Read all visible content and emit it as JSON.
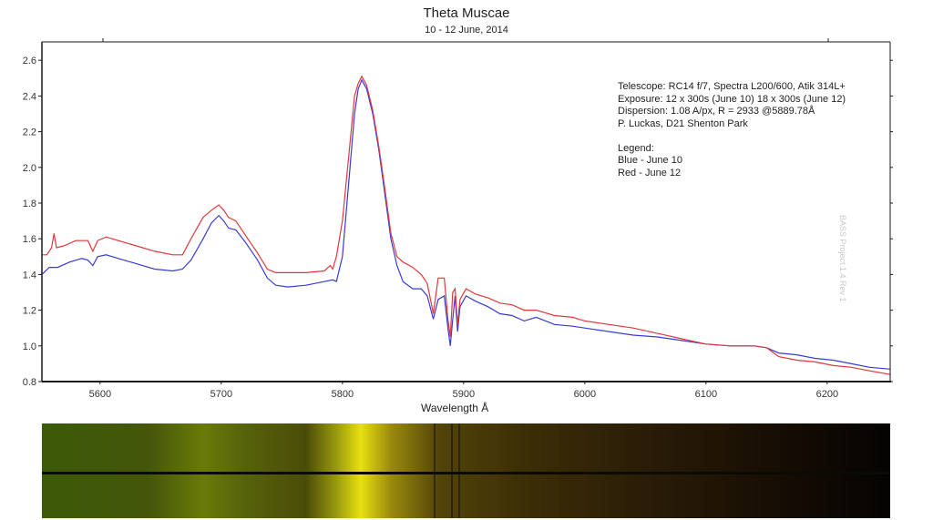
{
  "header": {
    "title": "Theta Muscae",
    "subtitle": "10 - 12 June, 2014"
  },
  "info": {
    "lines": [
      "Telescope: RC14 f/7, Spectra L200/600, Atik 314L+",
      "Exposure: 12 x 300s (June 10) 18 x 300s (June 12)",
      "Dispersion: 1.08 A/px, R = 2933 @5889.78Å",
      "P. Luckas, D21 Shenton Park",
      "",
      "Legend:",
      "Blue - June 10",
      "Red - June 12"
    ]
  },
  "watermark": "BASS Project 1.4 Rev 1",
  "colors": {
    "blue": "#3a3ad6",
    "red": "#e0383c",
    "axis": "#1a1a1a"
  },
  "chart_data": {
    "type": "line",
    "title": "Theta Muscae",
    "subtitle": "10 - 12 June, 2014",
    "xlabel": "Wavelength Å",
    "ylabel": "",
    "xlim": [
      5552,
      6252
    ],
    "ylim": [
      0.8,
      2.7
    ],
    "xticks": [
      5600,
      5700,
      5800,
      5900,
      6000,
      6100,
      6200
    ],
    "yticks": [
      0.8,
      1.0,
      1.2,
      1.4,
      1.6,
      1.8,
      2.0,
      2.2,
      2.4,
      2.6
    ],
    "grid": false,
    "legend": "text block upper right: Blue - June 10, Red - June 12",
    "series": [
      {
        "name": "June 10",
        "color": "blue",
        "x": [
          5552,
          5558,
          5565,
          5575,
          5585,
          5590,
          5594,
          5598,
          5605,
          5615,
          5630,
          5645,
          5660,
          5668,
          5675,
          5685,
          5692,
          5698,
          5702,
          5706,
          5712,
          5720,
          5730,
          5738,
          5745,
          5755,
          5770,
          5785,
          5792,
          5795,
          5800,
          5805,
          5810,
          5813,
          5816,
          5820,
          5825,
          5830,
          5835,
          5840,
          5845,
          5850,
          5858,
          5865,
          5870,
          5875,
          5879,
          5884,
          5887,
          5889,
          5891,
          5893,
          5895,
          5897,
          5902,
          5910,
          5920,
          5930,
          5940,
          5950,
          5960,
          5975,
          5990,
          6000,
          6020,
          6040,
          6060,
          6080,
          6100,
          6120,
          6140,
          6150,
          6160,
          6175,
          6190,
          6205,
          6220,
          6235,
          6252
        ],
        "y": [
          1.4,
          1.44,
          1.44,
          1.47,
          1.49,
          1.48,
          1.45,
          1.5,
          1.51,
          1.49,
          1.46,
          1.43,
          1.42,
          1.43,
          1.48,
          1.6,
          1.69,
          1.73,
          1.7,
          1.66,
          1.65,
          1.58,
          1.48,
          1.38,
          1.34,
          1.33,
          1.34,
          1.36,
          1.37,
          1.36,
          1.5,
          1.9,
          2.3,
          2.44,
          2.49,
          2.44,
          2.3,
          2.1,
          1.85,
          1.6,
          1.45,
          1.36,
          1.32,
          1.32,
          1.28,
          1.15,
          1.26,
          1.28,
          1.1,
          1.0,
          1.15,
          1.28,
          1.08,
          1.22,
          1.28,
          1.25,
          1.22,
          1.18,
          1.17,
          1.14,
          1.16,
          1.12,
          1.11,
          1.1,
          1.08,
          1.06,
          1.05,
          1.03,
          1.01,
          1.0,
          1.0,
          0.99,
          0.96,
          0.95,
          0.93,
          0.92,
          0.9,
          0.88,
          0.87
        ]
      },
      {
        "name": "June 12",
        "color": "red",
        "x": [
          5552,
          5556,
          5560,
          5562,
          5564,
          5570,
          5580,
          5590,
          5594,
          5598,
          5605,
          5615,
          5630,
          5645,
          5660,
          5668,
          5675,
          5685,
          5692,
          5698,
          5702,
          5706,
          5712,
          5720,
          5730,
          5738,
          5745,
          5755,
          5770,
          5785,
          5790,
          5792,
          5795,
          5800,
          5805,
          5810,
          5813,
          5816,
          5820,
          5825,
          5830,
          5835,
          5840,
          5845,
          5850,
          5858,
          5865,
          5870,
          5875,
          5879,
          5884,
          5887,
          5889,
          5891,
          5893,
          5895,
          5897,
          5902,
          5910,
          5920,
          5930,
          5940,
          5950,
          5960,
          5975,
          5990,
          6000,
          6020,
          6040,
          6060,
          6080,
          6100,
          6120,
          6140,
          6150,
          6160,
          6175,
          6190,
          6205,
          6220,
          6235,
          6252
        ],
        "y": [
          1.51,
          1.51,
          1.55,
          1.63,
          1.55,
          1.56,
          1.59,
          1.59,
          1.53,
          1.59,
          1.61,
          1.59,
          1.56,
          1.53,
          1.51,
          1.51,
          1.6,
          1.72,
          1.76,
          1.79,
          1.76,
          1.72,
          1.7,
          1.62,
          1.52,
          1.43,
          1.41,
          1.41,
          1.41,
          1.42,
          1.45,
          1.43,
          1.5,
          1.7,
          2.05,
          2.4,
          2.47,
          2.51,
          2.46,
          2.32,
          2.12,
          1.88,
          1.63,
          1.5,
          1.47,
          1.44,
          1.4,
          1.35,
          1.18,
          1.38,
          1.38,
          1.15,
          1.05,
          1.3,
          1.32,
          1.12,
          1.26,
          1.32,
          1.29,
          1.27,
          1.24,
          1.23,
          1.2,
          1.2,
          1.17,
          1.16,
          1.14,
          1.12,
          1.1,
          1.07,
          1.04,
          1.01,
          1.0,
          1.0,
          0.99,
          0.94,
          0.92,
          0.91,
          0.89,
          0.88,
          0.86,
          0.84
        ]
      }
    ],
    "spectrum_strip": {
      "description": "2D false-color spectrum image of both nights stacked, divided by a dark horizontal line",
      "stops": [
        {
          "x": 5552,
          "color": "#3c5a08"
        },
        {
          "x": 5640,
          "color": "#44560a"
        },
        {
          "x": 5685,
          "color": "#6a7a08"
        },
        {
          "x": 5720,
          "color": "#56620a"
        },
        {
          "x": 5770,
          "color": "#4a4c08"
        },
        {
          "x": 5795,
          "color": "#9a9a10"
        },
        {
          "x": 5815,
          "color": "#e8e010"
        },
        {
          "x": 5840,
          "color": "#9a8a0e"
        },
        {
          "x": 5880,
          "color": "#524408"
        },
        {
          "x": 5950,
          "color": "#3c2e06"
        },
        {
          "x": 6050,
          "color": "#2a1c06"
        },
        {
          "x": 6150,
          "color": "#180e04"
        },
        {
          "x": 6252,
          "color": "#050302"
        }
      ],
      "absorption_lines": [
        5876,
        5890,
        5896
      ]
    }
  }
}
